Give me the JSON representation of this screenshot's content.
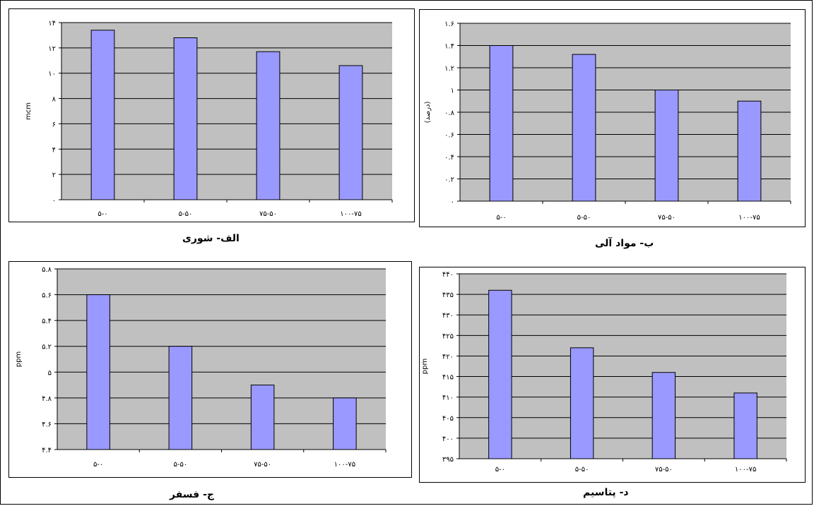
{
  "colors": {
    "bar_fill": "#9999ff",
    "bar_stroke": "#000000",
    "plot_bg": "#c0c0c0",
    "grid": "#000000"
  },
  "chart_data": [
    {
      "id": "a",
      "type": "bar",
      "categories": [
        "۵-۰",
        "۵-۵۰",
        "۷۵-۵۰",
        "۱۰۰-۷۵"
      ],
      "values": [
        13.4,
        12.8,
        11.7,
        10.6
      ],
      "ylim": [
        0,
        14
      ],
      "yticks": [
        0,
        2,
        4,
        6,
        8,
        10,
        12,
        14
      ],
      "ytick_labels": [
        "۰",
        "۲",
        "۴",
        "۶",
        "۸",
        "۱۰",
        "۱۲",
        "۱۴"
      ],
      "ylabel": "mcm",
      "caption": "الف- شوری",
      "grid": true
    },
    {
      "id": "b",
      "type": "bar",
      "categories": [
        "۵-۰",
        "۵-۵۰",
        "۷۵-۵۰",
        "۱۰۰-۷۵"
      ],
      "values": [
        1.4,
        1.32,
        1.0,
        0.9
      ],
      "ylim": [
        0,
        1.6
      ],
      "yticks": [
        0,
        0.2,
        0.4,
        0.6,
        0.8,
        1,
        1.2,
        1.4,
        1.6
      ],
      "ytick_labels": [
        "۰",
        "۰.۲",
        "۰.۴",
        "۰.۶",
        "۰.۸",
        "۱",
        "۱.۲",
        "۱.۴",
        "۱.۶"
      ],
      "ylabel": "(درصد)",
      "caption": "ب- مواد آلی",
      "grid": true
    },
    {
      "id": "c",
      "type": "bar",
      "categories": [
        "۵-۰",
        "۵-۵۰",
        "۷۵-۵۰",
        "۱۰۰-۷۵"
      ],
      "values": [
        5.6,
        5.2,
        4.9,
        4.8
      ],
      "ylim": [
        4.4,
        5.8
      ],
      "yticks": [
        4.4,
        4.6,
        4.8,
        5.0,
        5.2,
        5.4,
        5.6,
        5.8
      ],
      "ytick_labels": [
        "۴.۴",
        "۴.۶",
        "۴.۸",
        "۵",
        "۵.۲",
        "۵.۴",
        "۵.۶",
        "۵.۸"
      ],
      "ylabel": "ppm",
      "caption": "ج- فسفر",
      "grid": true
    },
    {
      "id": "d",
      "type": "bar",
      "categories": [
        "۵-۰",
        "۵-۵۰",
        "۷۵-۵۰",
        "۱۰۰-۷۵"
      ],
      "values": [
        436,
        422,
        416,
        411
      ],
      "ylim": [
        395,
        440
      ],
      "yticks": [
        395,
        400,
        405,
        410,
        415,
        420,
        425,
        430,
        435,
        440
      ],
      "ytick_labels": [
        "۳۹۵",
        "۴۰۰",
        "۴۰۵",
        "۴۱۰",
        "۴۱۵",
        "۴۲۰",
        "۴۲۵",
        "۴۳۰",
        "۴۳۵",
        "۴۴۰"
      ],
      "ylabel": "ppm",
      "caption": "د- پتاسیم",
      "grid": true
    }
  ]
}
